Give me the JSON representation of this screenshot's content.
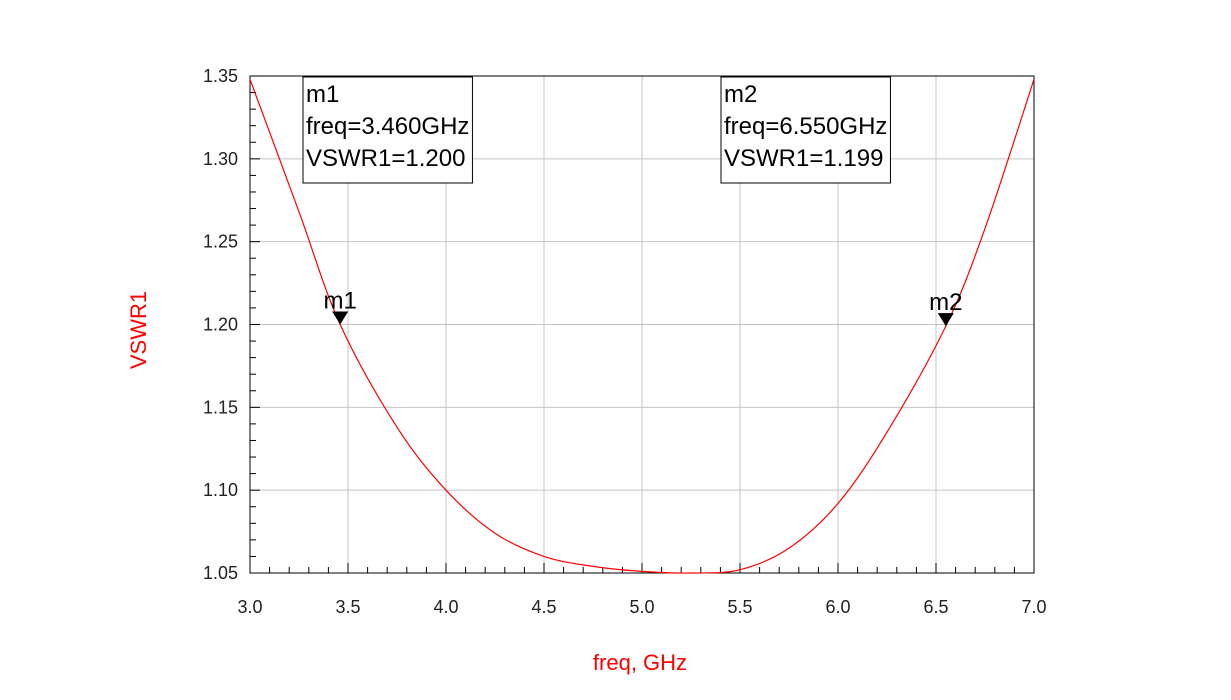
{
  "chart_data": {
    "type": "line",
    "xlabel": "freq, GHz",
    "ylabel": "VSWR1",
    "xlim": [
      3.0,
      7.0
    ],
    "ylim": [
      1.05,
      1.35
    ],
    "xticks": [
      "3.0",
      "3.5",
      "4.0",
      "4.5",
      "5.0",
      "5.5",
      "6.0",
      "6.5",
      "7.0"
    ],
    "yticks": [
      "1.05",
      "1.10",
      "1.15",
      "1.20",
      "1.25",
      "1.30",
      "1.35"
    ],
    "grid": true,
    "series": [
      {
        "color": "#ff0000",
        "x": [
          3.0,
          3.25,
          3.46,
          3.75,
          4.0,
          4.25,
          4.5,
          4.75,
          5.0,
          5.25,
          5.5,
          5.75,
          6.0,
          6.25,
          6.55,
          6.75,
          7.0
        ],
        "y": [
          1.348,
          1.268,
          1.2,
          1.138,
          1.1,
          1.074,
          1.06,
          1.054,
          1.051,
          1.05,
          1.052,
          1.065,
          1.092,
          1.135,
          1.199,
          1.258,
          1.348
        ]
      }
    ],
    "markers": [
      {
        "name": "m1",
        "freq": 3.46,
        "value": 1.2,
        "lines": [
          "m1",
          "freq=3.460GHz",
          "VSWR1=1.200"
        ]
      },
      {
        "name": "m2",
        "freq": 6.55,
        "value": 1.199,
        "lines": [
          "m2",
          "freq=6.550GHz",
          "VSWR1=1.199"
        ]
      }
    ]
  }
}
